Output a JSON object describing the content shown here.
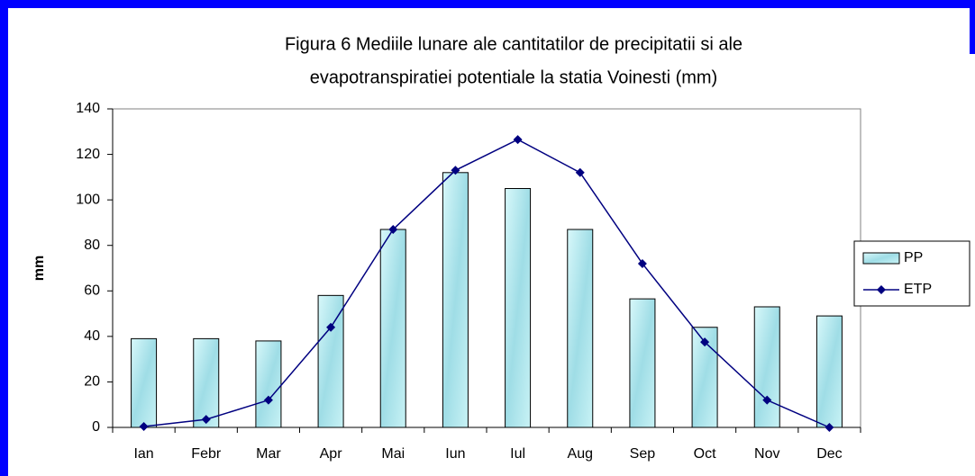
{
  "chart_data": {
    "type": "bar_line",
    "title": [
      "Figura  6 Mediile lunare ale cantitatilor de precipitatii si ale",
      "evapotranspiratiei potentiale la statia Voinesti (mm)"
    ],
    "y_label": "mm",
    "categories": [
      "Ian",
      "Febr",
      "Mar",
      "Apr",
      "Mai",
      "Iun",
      "Iul",
      "Aug",
      "Sep",
      "Oct",
      "Nov",
      "Dec"
    ],
    "series": [
      {
        "name": "PP",
        "type": "bar",
        "color": "#b8eef2",
        "values": [
          39,
          39,
          38,
          58,
          87,
          112,
          105,
          87,
          56.5,
          44,
          53,
          49
        ]
      },
      {
        "name": "ETP",
        "type": "line",
        "color": "#000080",
        "values": [
          0.4,
          3.5,
          12,
          44,
          87,
          113,
          126.5,
          112,
          72,
          37.5,
          12,
          0
        ]
      }
    ],
    "ylim": [
      0,
      140
    ],
    "yticks": [
      0,
      20,
      40,
      60,
      80,
      100,
      120,
      140
    ],
    "legend": "right"
  }
}
